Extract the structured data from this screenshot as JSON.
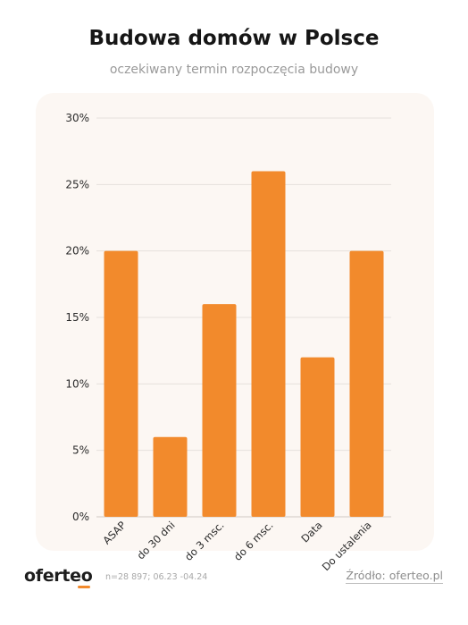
{
  "header": {
    "title": "Budowa domów w Polsce",
    "subtitle": "oczekiwany termin rozpoczęcia budowy"
  },
  "footer": {
    "logo": "oferteo",
    "note": "n=28 897; 06.23 -04.24",
    "source": "Źródło: oferteo.pl"
  },
  "colors": {
    "bar": "#f28a2c",
    "panel": "#fcf7f3",
    "grid": "#e6e1dc"
  },
  "chart_data": {
    "type": "bar",
    "title": "Budowa domów w Polsce",
    "subtitle": "oczekiwany termin rozpoczęcia budowy",
    "categories": [
      "ASAP",
      "do 30 dni",
      "do 3 msc.",
      "do 6 msc.",
      "Data",
      "Do ustalenia"
    ],
    "values": [
      20,
      6,
      16,
      26,
      12,
      20
    ],
    "ylim": [
      0,
      30
    ],
    "yticks": [
      "0%",
      "5%",
      "10%",
      "15%",
      "20%",
      "25%",
      "30%"
    ],
    "ytick_values": [
      0,
      5,
      10,
      15,
      20,
      25,
      30
    ],
    "grid": true,
    "xlabel": "",
    "ylabel": ""
  }
}
